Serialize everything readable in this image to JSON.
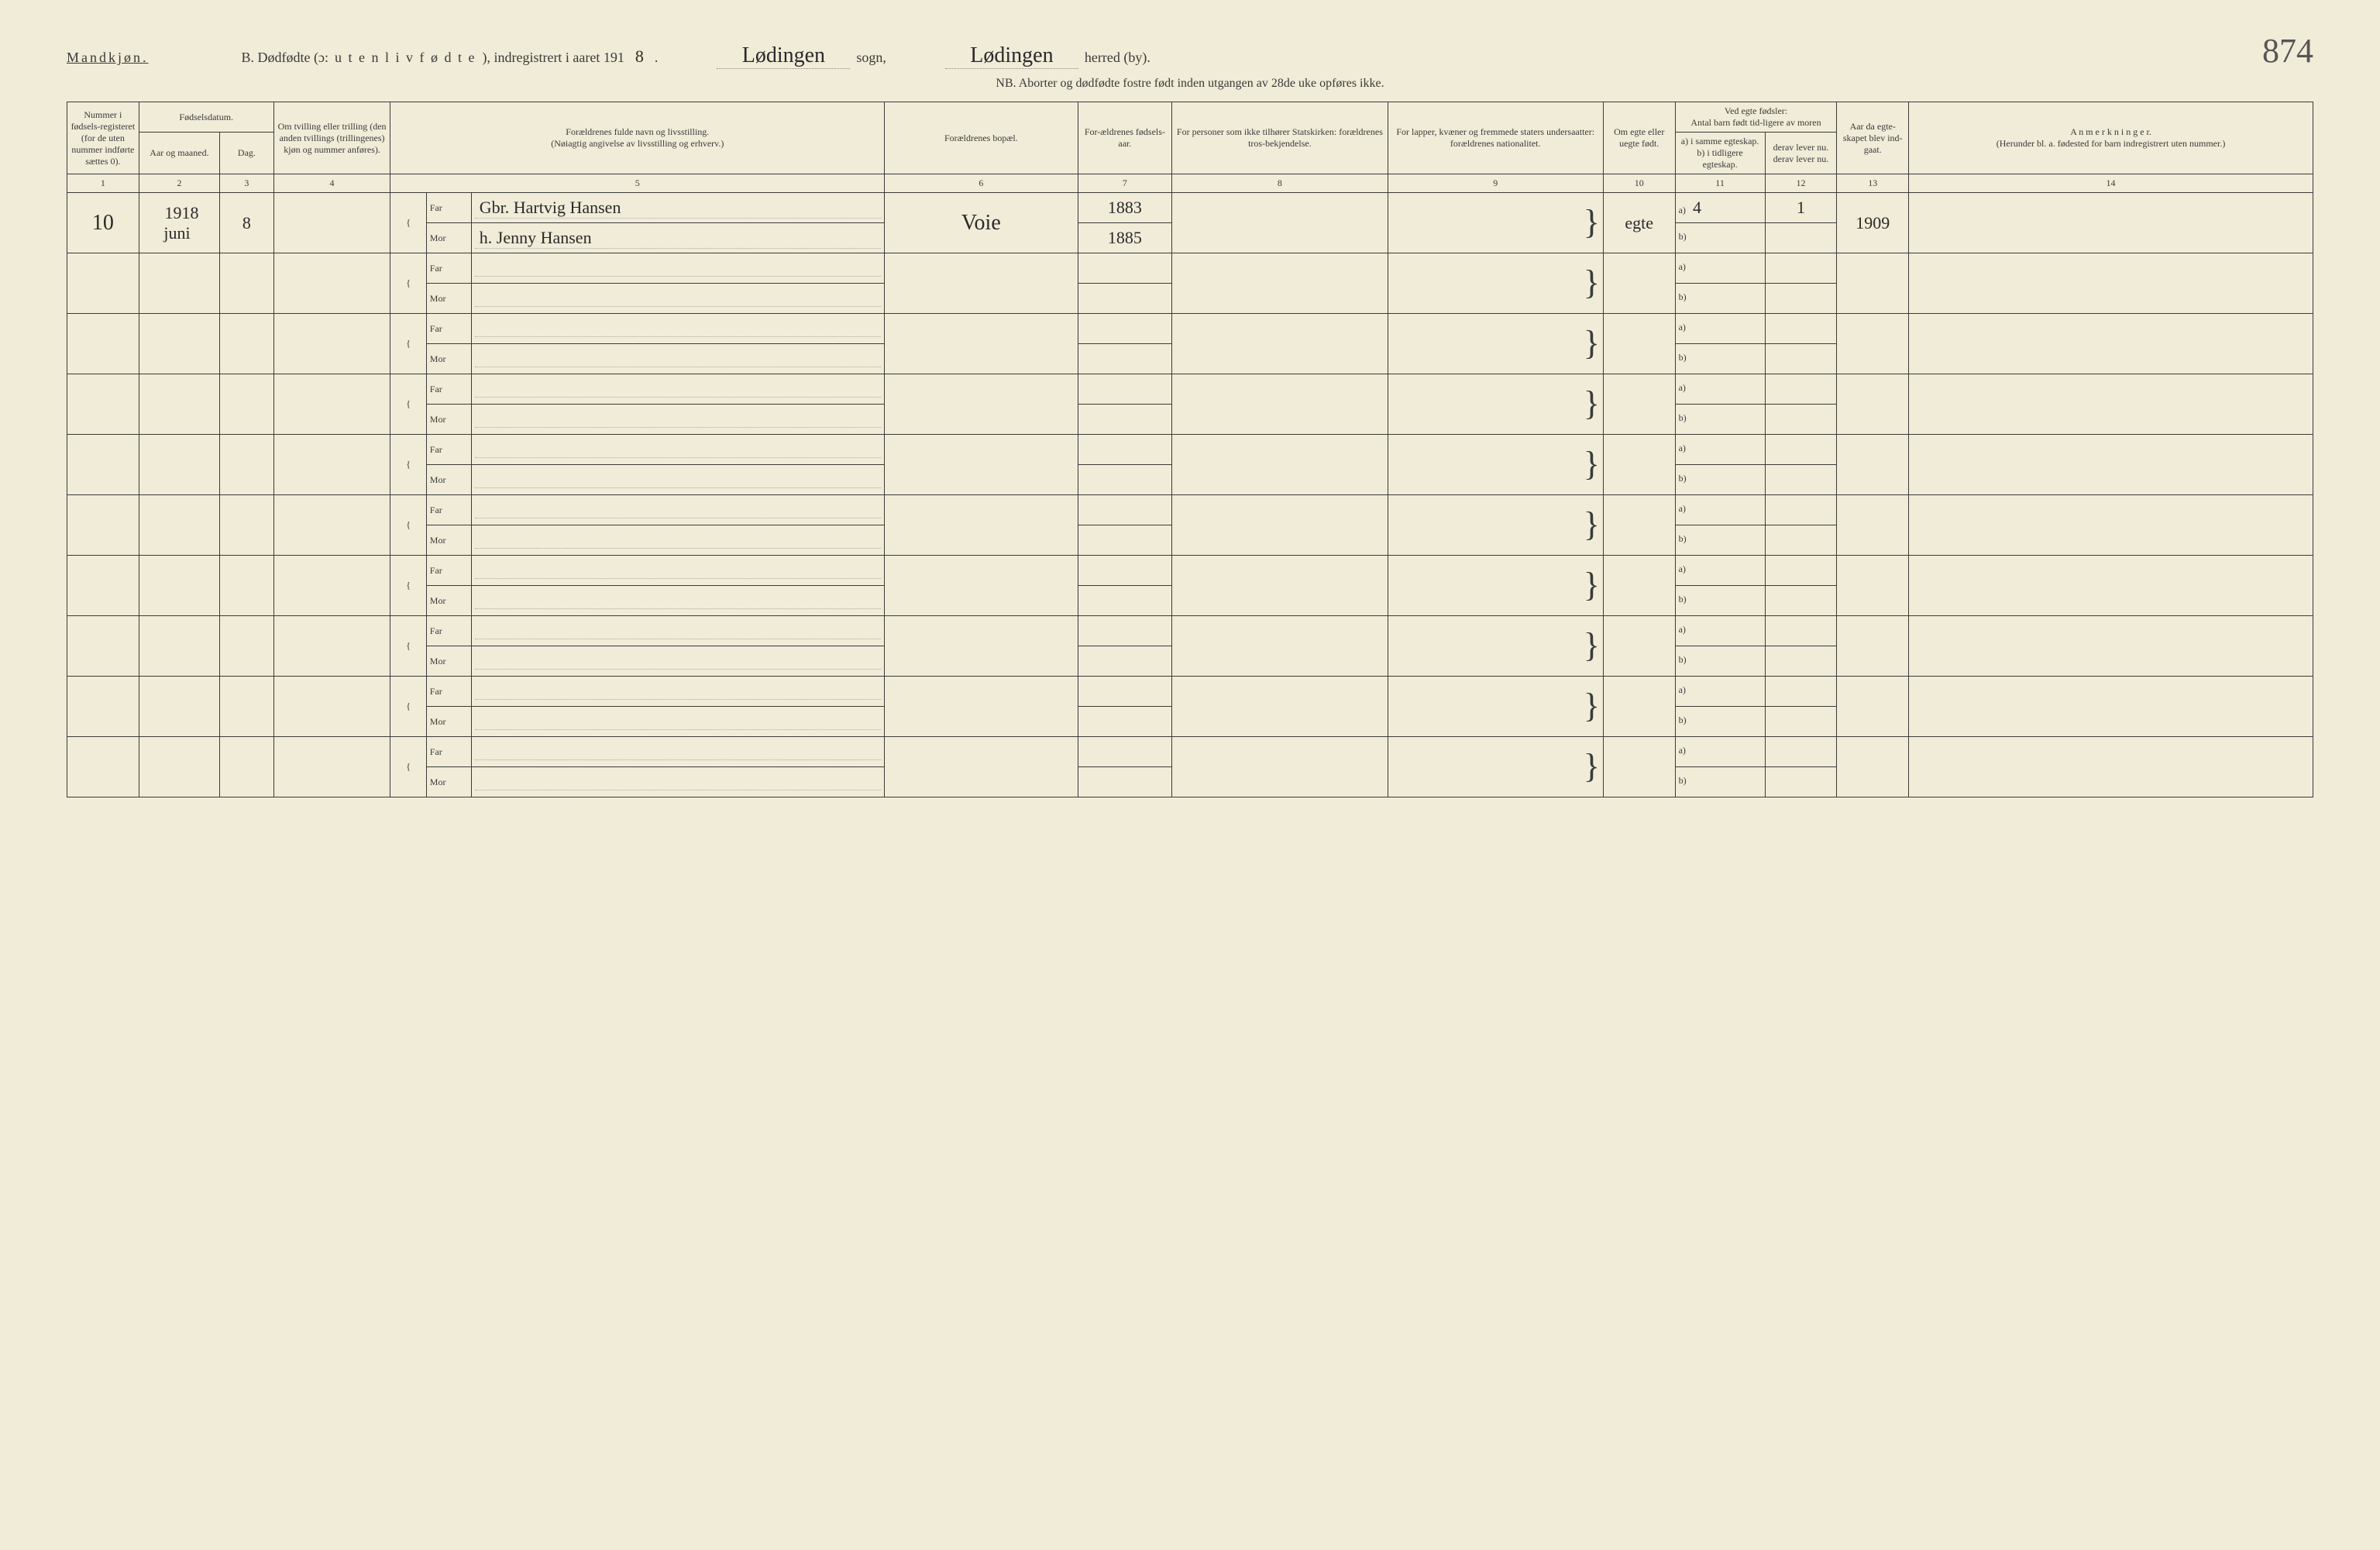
{
  "header": {
    "gender": "Mandkjøn.",
    "title_prefix": "B. Dødfødte (ɔ:",
    "title_spaced": "u t e n  l i v  f ø d t e",
    "title_suffix": "), indregistrert i aaret 191",
    "year_digit": "8",
    "year_period": ".",
    "sogn_value": "Lødingen",
    "sogn_label": "sogn,",
    "herred_value": "Lødingen",
    "herred_label": "herred (by).",
    "page_number": "874",
    "subtitle": "NB.  Aborter og dødfødte fostre født inden utgangen av 28de uke opføres ikke."
  },
  "columns": {
    "c1": "Nummer i fødsels-registeret (for de uten nummer indførte sættes 0).",
    "c2_3_group": "Fødselsdatum.",
    "c2": "Aar og maaned.",
    "c3": "Dag.",
    "c4": "Om tvilling eller trilling (den anden tvillings (trillingenes) kjøn og nummer anføres).",
    "c5": "Forældrenes fulde navn og livsstilling.\n(Nøiagtig angivelse av livsstilling og erhverv.)",
    "c6": "Forældrenes bopæl.",
    "c7": "For-ældrenes fødsels-aar.",
    "c8": "For personer som ikke tilhører Statskirken: forældrenes tros-bekjendelse.",
    "c9": "For lapper, kvæner og fremmede staters undersaatter: forældrenes nationalitet.",
    "c10": "Om egte eller uegte født.",
    "c11_12_group": "Ved egte fødsler:\nAntal barn født tid-ligere av moren",
    "c11": "a) i samme egteskap.\nb) i tidligere egteskap.",
    "c12": "derav lever nu.\nderav lever nu.",
    "c13": "Aar da egte-skapet blev ind-gaat.",
    "c14": "A n m e r k n i n g e r.\n(Herunder bl. a. fødested for barn indregistrert uten nummer.)",
    "far": "Far",
    "mor": "Mor",
    "a_label": "a)",
    "b_label": "b)"
  },
  "colnums": [
    "1",
    "2",
    "3",
    "4",
    "5",
    "6",
    "7",
    "8",
    "9",
    "10",
    "11",
    "12",
    "13",
    "14"
  ],
  "rows": [
    {
      "num": "10",
      "year_month": "1918\njuni",
      "day": "8",
      "twin": "",
      "far_name": "Gbr. Hartvig Hansen",
      "mor_name": "h. Jenny Hansen",
      "residence": "Voie",
      "far_birth": "1883",
      "mor_birth": "1885",
      "c8": "",
      "c9": "",
      "legit": "egte",
      "c11a": "4",
      "c11b": "",
      "c12a": "1",
      "c12b": "",
      "marriage_year": "1909",
      "remarks": ""
    },
    {
      "num": "",
      "year_month": "",
      "day": "",
      "twin": "",
      "far_name": "",
      "mor_name": "",
      "residence": "",
      "far_birth": "",
      "mor_birth": "",
      "c8": "",
      "c9": "",
      "legit": "",
      "c11a": "",
      "c11b": "",
      "c12a": "",
      "c12b": "",
      "marriage_year": "",
      "remarks": ""
    },
    {
      "num": "",
      "year_month": "",
      "day": "",
      "twin": "",
      "far_name": "",
      "mor_name": "",
      "residence": "",
      "far_birth": "",
      "mor_birth": "",
      "c8": "",
      "c9": "",
      "legit": "",
      "c11a": "",
      "c11b": "",
      "c12a": "",
      "c12b": "",
      "marriage_year": "",
      "remarks": ""
    },
    {
      "num": "",
      "year_month": "",
      "day": "",
      "twin": "",
      "far_name": "",
      "mor_name": "",
      "residence": "",
      "far_birth": "",
      "mor_birth": "",
      "c8": "",
      "c9": "",
      "legit": "",
      "c11a": "",
      "c11b": "",
      "c12a": "",
      "c12b": "",
      "marriage_year": "",
      "remarks": ""
    },
    {
      "num": "",
      "year_month": "",
      "day": "",
      "twin": "",
      "far_name": "",
      "mor_name": "",
      "residence": "",
      "far_birth": "",
      "mor_birth": "",
      "c8": "",
      "c9": "",
      "legit": "",
      "c11a": "",
      "c11b": "",
      "c12a": "",
      "c12b": "",
      "marriage_year": "",
      "remarks": ""
    },
    {
      "num": "",
      "year_month": "",
      "day": "",
      "twin": "",
      "far_name": "",
      "mor_name": "",
      "residence": "",
      "far_birth": "",
      "mor_birth": "",
      "c8": "",
      "c9": "",
      "legit": "",
      "c11a": "",
      "c11b": "",
      "c12a": "",
      "c12b": "",
      "marriage_year": "",
      "remarks": ""
    },
    {
      "num": "",
      "year_month": "",
      "day": "",
      "twin": "",
      "far_name": "",
      "mor_name": "",
      "residence": "",
      "far_birth": "",
      "mor_birth": "",
      "c8": "",
      "c9": "",
      "legit": "",
      "c11a": "",
      "c11b": "",
      "c12a": "",
      "c12b": "",
      "marriage_year": "",
      "remarks": ""
    },
    {
      "num": "",
      "year_month": "",
      "day": "",
      "twin": "",
      "far_name": "",
      "mor_name": "",
      "residence": "",
      "far_birth": "",
      "mor_birth": "",
      "c8": "",
      "c9": "",
      "legit": "",
      "c11a": "",
      "c11b": "",
      "c12a": "",
      "c12b": "",
      "marriage_year": "",
      "remarks": ""
    },
    {
      "num": "",
      "year_month": "",
      "day": "",
      "twin": "",
      "far_name": "",
      "mor_name": "",
      "residence": "",
      "far_birth": "",
      "mor_birth": "",
      "c8": "",
      "c9": "",
      "legit": "",
      "c11a": "",
      "c11b": "",
      "c12a": "",
      "c12b": "",
      "marriage_year": "",
      "remarks": ""
    },
    {
      "num": "",
      "year_month": "",
      "day": "",
      "twin": "",
      "far_name": "",
      "mor_name": "",
      "residence": "",
      "far_birth": "",
      "mor_birth": "",
      "c8": "",
      "c9": "",
      "legit": "",
      "c11a": "",
      "c11b": "",
      "c12a": "",
      "c12b": "",
      "marriage_year": "",
      "remarks": ""
    }
  ],
  "style": {
    "background": "#f0ecd8",
    "ink": "#3a3a3a",
    "col_widths_pct": [
      3.2,
      3.6,
      2.4,
      5.2,
      1.6,
      2.0,
      18.4,
      8.6,
      4.2,
      9.6,
      9.6,
      3.2,
      4.0,
      3.2,
      3.2,
      18.0
    ]
  }
}
